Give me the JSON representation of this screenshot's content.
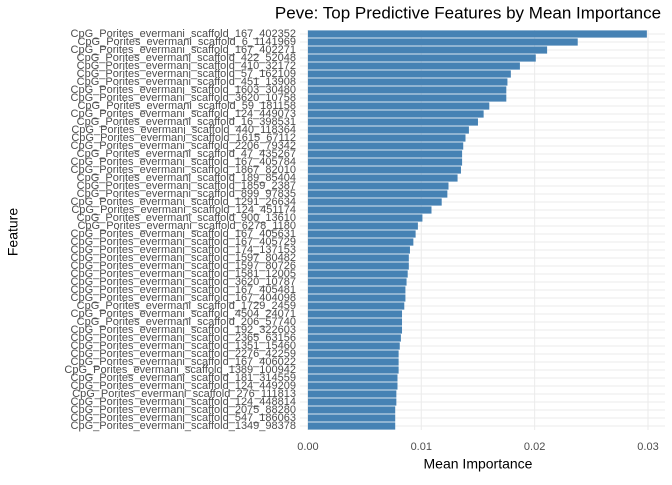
{
  "chart_data": {
    "type": "hbar",
    "title": "Peve: Top Predictive Features by Mean Importance",
    "x_label": "Mean Importance",
    "y_label": "Feature",
    "color": "#4682b4",
    "grid": true,
    "xlim": [
      -0.0007,
      0.0315
    ],
    "xticks": [
      {
        "value": 0,
        "label": "0.00"
      },
      0.01,
      0.02,
      0.03
    ],
    "categories": [
      "CpG_Porites_evermani_scaffold_167_402352",
      "CpG_Porites_evermani_scaffold_6_1141969",
      "CpG_Porites_evermani_scaffold_167_402271",
      "CpG_Porites_evermani_scaffold_422_52048",
      "CpG_Porites_evermani_scaffold_410_32172",
      "CpG_Porites_evermani_scaffold_57_162109",
      "CpG_Porites_evermani_scaffold_451_13908",
      "CpG_Porites_evermani_scaffold_1603_30480",
      "CpG_Porites_evermani_scaffold_3620_10758",
      "CpG_Porites_evermani_scaffold_59_181158",
      "CpG_Porites_evermani_scaffold_124_449073",
      "CpG_Porites_evermani_scaffold_16_398531",
      "CpG_Porites_evermani_scaffold_440_118364",
      "CpG_Porites_evermani_scaffold_1615_67112",
      "CpG_Porites_evermani_scaffold_2206_79342",
      "CpG_Porites_evermani_scaffold_47_435267",
      "CpG_Porites_evermani_scaffold_167_405784",
      "CpG_Porites_evermani_scaffold_1867_82010",
      "CpG_Porites_evermani_scaffold_189_85404",
      "CpG_Porites_evermani_scaffold_1859_2387",
      "CpG_Porites_evermani_scaffold_899_97835",
      "CpG_Porites_evermani_scaffold_1291_26634",
      "CpG_Porites_evermani_scaffold_124_451174",
      "CpG_Porites_evermani_scaffold_900_13610",
      "CpG_Porites_evermani_scaffold_6278_1180",
      "CpG_Porites_evermani_scaffold_167_405631",
      "CpG_Porites_evermani_scaffold_167_405729",
      "CpG_Porites_evermani_scaffold_174_137153",
      "CpG_Porites_evermani_scaffold_1597_80482",
      "CpG_Porites_evermani_scaffold_1597_80726",
      "CpG_Porites_evermani_scaffold_1581_12005",
      "CpG_Porites_evermani_scaffold_3620_10787",
      "CpG_Porites_evermani_scaffold_167_405481",
      "CpG_Porites_evermani_scaffold_167_404098",
      "CpG_Porites_evermani_scaffold_1729_2459",
      "CpG_Porites_evermani_scaffold_4504_24071",
      "CpG_Porites_evermani_scaffold_206_57740",
      "CpG_Porites_evermani_scaffold_192_322603",
      "CpG_Porites_evermani_scaffold_2365_63156",
      "CpG_Porites_evermani_scaffold_1351_15460",
      "CpG_Porites_evermani_scaffold_2276_42259",
      "CpG_Porites_evermani_scaffold_167_406022",
      "CpG_Porites_evermani_scaffold_1389_100942",
      "CpG_Porites_evermani_scaffold_181_314559",
      "CpG_Porites_evermani_scaffold_124_449209",
      "CpG_Porites_evermani_scaffold_276_111813",
      "CpG_Porites_evermani_scaffold_124_448814",
      "CpG_Porites_evermani_scaffold_2075_88280",
      "CpG_Porites_evermani_scaffold_547_186063",
      "CpG_Porites_evermani_scaffold_1349_98378"
    ],
    "values": [
      0.0299,
      0.0238,
      0.0211,
      0.0201,
      0.0187,
      0.0179,
      0.0176,
      0.0175,
      0.0175,
      0.016,
      0.0155,
      0.015,
      0.0142,
      0.0139,
      0.0137,
      0.0136,
      0.0136,
      0.0135,
      0.0132,
      0.0124,
      0.0123,
      0.0118,
      0.0109,
      0.0101,
      0.0097,
      0.0095,
      0.0093,
      0.009,
      0.0089,
      0.0089,
      0.0088,
      0.0087,
      0.0086,
      0.0086,
      0.0085,
      0.0083,
      0.0083,
      0.0083,
      0.0082,
      0.0081,
      0.008,
      0.008,
      0.008,
      0.0079,
      0.0079,
      0.0078,
      0.0078,
      0.0077,
      0.0077,
      0.0077
    ]
  }
}
